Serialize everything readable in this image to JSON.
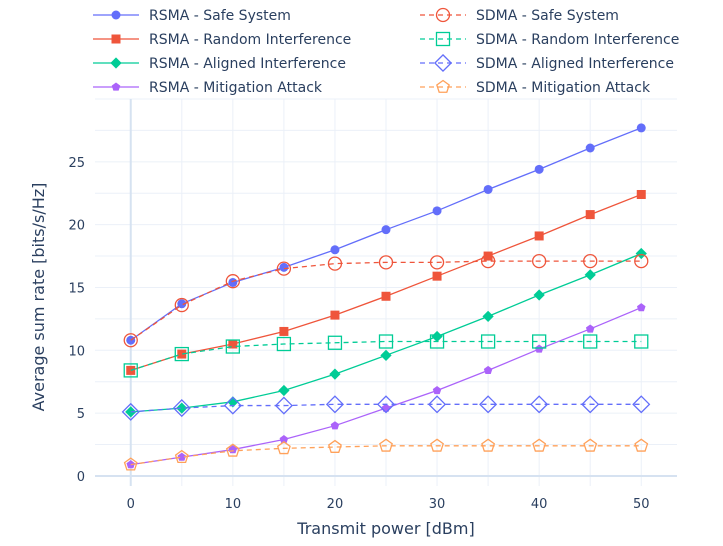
{
  "chart_data": {
    "type": "line",
    "xlabel": "Transmit power [dBm]",
    "ylabel": "Average sum rate [bits/s/Hz]",
    "xlim": [
      -3.5,
      53.5
    ],
    "ylim": [
      -0.8,
      30
    ],
    "x_ticks": [
      0,
      10,
      20,
      30,
      40,
      50
    ],
    "y_ticks": [
      0,
      5,
      10,
      15,
      20,
      25
    ],
    "grid": true,
    "legend_position": "top",
    "x": [
      0,
      5,
      10,
      15,
      20,
      25,
      30,
      35,
      40,
      45,
      50
    ],
    "series": [
      {
        "name": "RSMA - Safe System",
        "color": "#636efa",
        "marker": "circle",
        "dash": "solid",
        "values": [
          10.8,
          13.7,
          15.4,
          16.6,
          18.0,
          19.6,
          21.1,
          22.8,
          24.4,
          26.1,
          27.7
        ]
      },
      {
        "name": "RSMA - Random Interference",
        "color": "#ef553b",
        "marker": "square",
        "dash": "solid",
        "values": [
          8.4,
          9.7,
          10.5,
          11.5,
          12.8,
          14.3,
          15.9,
          17.5,
          19.1,
          20.8,
          22.4
        ]
      },
      {
        "name": "RSMA - Aligned Interference",
        "color": "#00cc96",
        "marker": "diamond",
        "dash": "solid",
        "values": [
          5.1,
          5.4,
          5.9,
          6.8,
          8.1,
          9.6,
          11.1,
          12.7,
          14.4,
          16.0,
          17.7
        ]
      },
      {
        "name": "RSMA - Mitigation Attack",
        "color": "#ab63fa",
        "marker": "pentagon",
        "dash": "solid",
        "values": [
          0.9,
          1.5,
          2.1,
          2.9,
          4.0,
          5.4,
          6.8,
          8.4,
          10.1,
          11.7,
          13.4
        ]
      },
      {
        "name": "SDMA - Safe System",
        "color": "#ef553b",
        "marker": "circle-open",
        "dash": "dash",
        "values": [
          10.8,
          13.6,
          15.5,
          16.5,
          16.9,
          17.0,
          17.0,
          17.1,
          17.1,
          17.1,
          17.1
        ]
      },
      {
        "name": "SDMA - Random Interference",
        "color": "#00cc96",
        "marker": "square-open",
        "dash": "dash",
        "values": [
          8.4,
          9.7,
          10.3,
          10.5,
          10.6,
          10.7,
          10.7,
          10.7,
          10.7,
          10.7,
          10.7
        ]
      },
      {
        "name": "SDMA - Aligned Interference",
        "color": "#636efa",
        "marker": "diamond-open",
        "dash": "dash",
        "values": [
          5.1,
          5.4,
          5.6,
          5.6,
          5.7,
          5.7,
          5.7,
          5.7,
          5.7,
          5.7,
          5.7
        ]
      },
      {
        "name": "SDMA - Mitigation Attack",
        "color": "#ffa15a",
        "marker": "pentagon-open",
        "dash": "dash",
        "values": [
          0.9,
          1.5,
          2.0,
          2.2,
          2.3,
          2.4,
          2.4,
          2.4,
          2.4,
          2.4,
          2.4
        ]
      }
    ]
  }
}
